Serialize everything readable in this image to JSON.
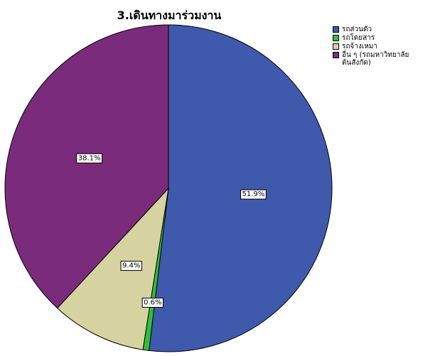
{
  "chart_data": {
    "type": "pie",
    "title": "3.เดินทางมาร่วมงาน",
    "slices": [
      {
        "label": "รถส่วนตัว",
        "value": 51.9,
        "value_label": "51.9%",
        "color": "#3f59ac"
      },
      {
        "label": "รถโดยสาร",
        "value": 0.6,
        "value_label": "0.6%",
        "color": "#2fbf3a"
      },
      {
        "label": "รถจ้างเหมา",
        "value": 9.4,
        "value_label": "9.4%",
        "color": "#d7d3a0"
      },
      {
        "label": "อื่น ๆ (รถมหาวิทยาลัย\nต้นสังกัด)",
        "value": 38.1,
        "value_label": "38.1%",
        "color": "#7b2b7b"
      }
    ],
    "legend_position": "top-right",
    "start_angle": "12 o'clock",
    "direction": "clockwise"
  }
}
